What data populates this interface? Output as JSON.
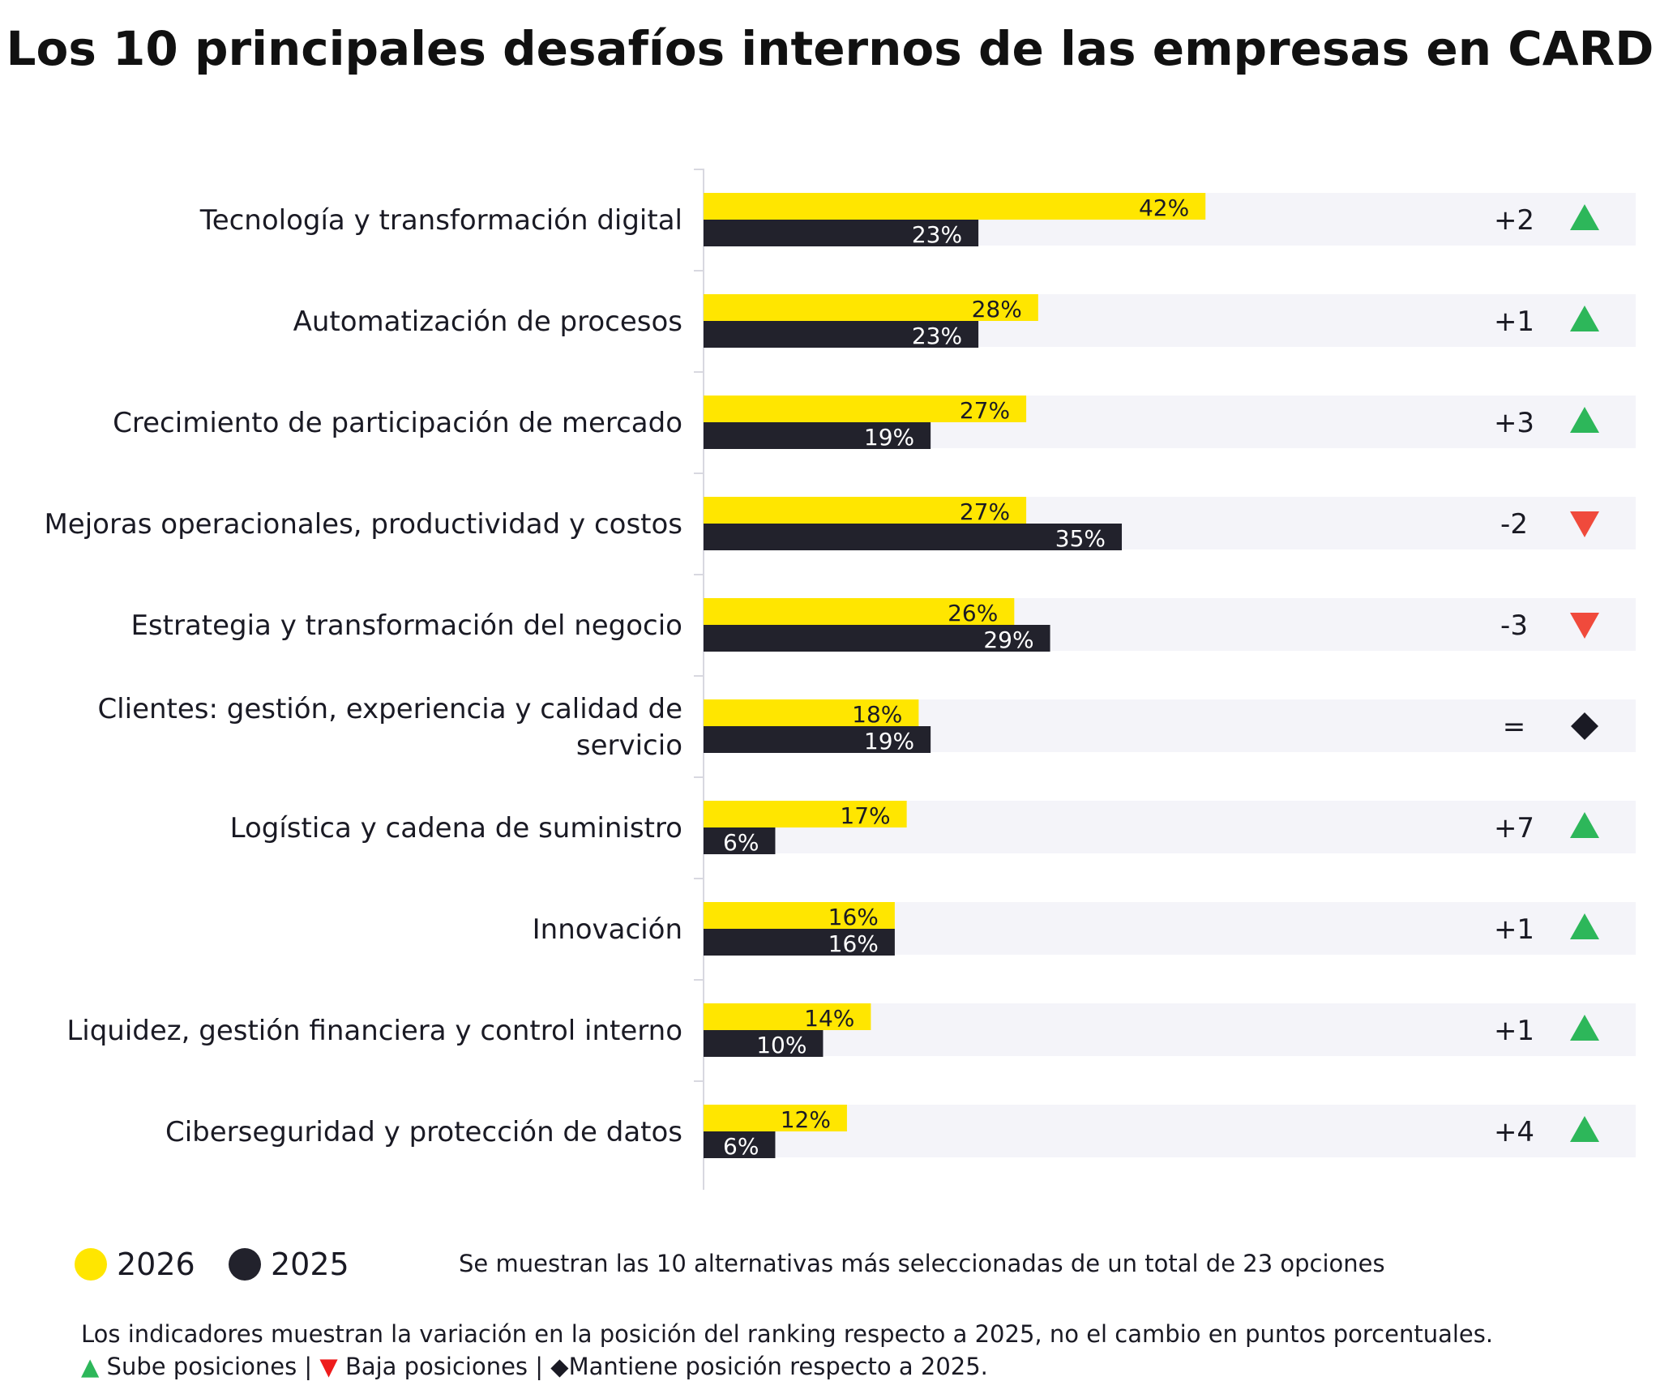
{
  "title": "Los 10 principales desafíos internos de las empresas en CARD",
  "colors": {
    "series_2026": "#ffe600",
    "series_2025": "#22222c",
    "row_band": "#f4f4f9",
    "axis": "#d8d8e0",
    "up": "#2db75a",
    "down": "#f04a3c",
    "keep": "#1a1a24"
  },
  "chart_data": {
    "type": "bar",
    "orientation": "horizontal",
    "categories": [
      "Tecnología y transformación digital",
      "Automatización de procesos",
      "Crecimiento de participación de mercado",
      "Mejoras operacionales, productividad y costos",
      "Estrategia y transformación del negocio",
      "Clientes: gestión, experiencia y calidad de servicio",
      "Logística y cadena de suministro",
      "Innovación",
      "Liquidez, gestión financiera y control interno",
      "Ciberseguridad y protección de datos"
    ],
    "category_lines": [
      [
        "Tecnología y transformación digital"
      ],
      [
        "Automatización de procesos"
      ],
      [
        "Crecimiento de participación de mercado"
      ],
      [
        "Mejoras operacionales, productividad y costos"
      ],
      [
        "Estrategia y transformación del negocio"
      ],
      [
        "Clientes: gestión, experiencia y calidad de",
        "servicio"
      ],
      [
        "Logística y cadena de suministro"
      ],
      [
        "Innovación"
      ],
      [
        "Liquidez, gestión financiera y control interno"
      ],
      [
        "Ciberseguridad y protección de datos"
      ]
    ],
    "series": [
      {
        "name": "2026",
        "values": [
          42,
          28,
          27,
          27,
          26,
          18,
          17,
          16,
          14,
          12
        ],
        "labels": [
          "42%",
          "28%",
          "27%",
          "27%",
          "26%",
          "18%",
          "17%",
          "16%",
          "14%",
          "12%"
        ]
      },
      {
        "name": "2025",
        "values": [
          23,
          23,
          19,
          35,
          29,
          19,
          6,
          16,
          10,
          6
        ],
        "labels": [
          "23%",
          "23%",
          "19%",
          "35%",
          "29%",
          "19%",
          "6%",
          "16%",
          "10%",
          "6%"
        ]
      }
    ],
    "rank_change": [
      "+2",
      "+1",
      "+3",
      "-2",
      "-3",
      "=",
      "+7",
      "+1",
      "+1",
      "+4"
    ],
    "rank_direction": [
      "up",
      "up",
      "up",
      "down",
      "down",
      "keep",
      "up",
      "up",
      "up",
      "up"
    ],
    "xlim": [
      0,
      78
    ],
    "grid": false,
    "legend_position": "bottom-left"
  },
  "legend": {
    "item_2026": "2026",
    "item_2025": "2025"
  },
  "note": "Se muestran las 10 alternativas más seleccionadas de un total de 23 opciones",
  "footnote": {
    "line1": "Los indicadores muestran la variación en la posición del ranking respecto a 2025, no el cambio en puntos porcentuales.",
    "up_symbol": "▲",
    "up_text": "Sube posiciones",
    "sep1": " | ",
    "down_symbol": "▼",
    "down_text": "Baja posiciones",
    "sep2": " | ",
    "keep_symbol": "◆",
    "keep_text": "Mantiene posición respecto a 2025."
  }
}
